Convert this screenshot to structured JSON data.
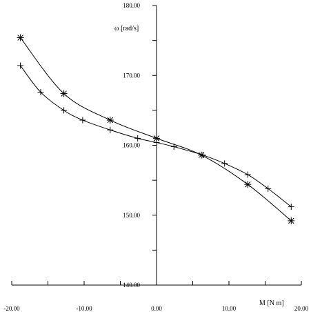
{
  "chart_data": {
    "type": "line",
    "title": "",
    "xlabel": "M [N m]",
    "ylabel": "ω [rad/s]",
    "xlim": [
      -20,
      20
    ],
    "ylim": [
      140,
      180
    ],
    "x_tick_labels": [
      "-20.00",
      "-10.00",
      "0.00",
      "10.00",
      "20.00"
    ],
    "y_tick_labels": [
      "140.00",
      "150.00",
      "160.00",
      "170.00",
      "180.00"
    ],
    "grid": false,
    "legend": "none",
    "colors": {
      "line": "#000000",
      "axis": "#000000"
    },
    "series": [
      {
        "marker": "asterisk",
        "x": [
          -18.8,
          -12.8,
          -6.4,
          0.0,
          6.2,
          12.6,
          18.6
        ],
        "y": [
          175.4,
          167.4,
          163.6,
          161.0,
          158.6,
          154.4,
          149.2
        ]
      },
      {
        "marker": "plus",
        "x": [
          -18.8,
          -16.0,
          -12.8,
          -10.2,
          -6.4,
          -2.6,
          0.0,
          2.4,
          6.4,
          9.4,
          12.6,
          15.4,
          18.6
        ],
        "y": [
          171.4,
          167.6,
          165.0,
          163.6,
          162.2,
          161.0,
          160.4,
          159.8,
          158.6,
          157.4,
          155.8,
          153.8,
          151.2
        ]
      }
    ]
  }
}
